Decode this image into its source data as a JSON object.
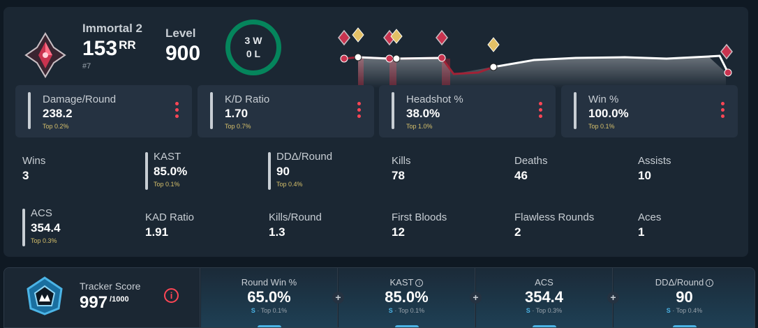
{
  "profile": {
    "rank_name": "Immortal 2",
    "rr_value": "153",
    "rr_unit": "RR",
    "leaderboard_place": "#7",
    "level_label": "Level",
    "level_value": "900",
    "wins_text": "3 W",
    "losses_text": "0 L"
  },
  "rr_history": {
    "points": [
      52,
      48,
      46,
      46,
      48,
      66,
      64,
      66,
      76,
      83
    ]
  },
  "stat_cards": [
    {
      "label": "Damage/Round",
      "value": "238.2",
      "top": "Top 0.2%"
    },
    {
      "label": "K/D Ratio",
      "value": "1.70",
      "top": "Top 0.7%"
    },
    {
      "label": "Headshot %",
      "value": "38.0%",
      "top": "Top 1.0%"
    },
    {
      "label": "Win %",
      "value": "100.0%",
      "top": "Top 0.1%"
    }
  ],
  "stats": {
    "wins": {
      "label": "Wins",
      "value": "3"
    },
    "kast": {
      "label": "KAST",
      "value": "85.0%",
      "top": "Top 0.1%"
    },
    "dda": {
      "label": "DDΔ/Round",
      "value": "90",
      "top": "Top 0.4%"
    },
    "kills": {
      "label": "Kills",
      "value": "78"
    },
    "deaths": {
      "label": "Deaths",
      "value": "46"
    },
    "assists": {
      "label": "Assists",
      "value": "10"
    },
    "acs": {
      "label": "ACS",
      "value": "354.4",
      "top": "Top 0.3%"
    },
    "kad": {
      "label": "KAD Ratio",
      "value": "1.91"
    },
    "kpr": {
      "label": "Kills/Round",
      "value": "1.3"
    },
    "first_bloods": {
      "label": "First Bloods",
      "value": "12"
    },
    "flawless": {
      "label": "Flawless Rounds",
      "value": "2"
    },
    "aces": {
      "label": "Aces",
      "value": "1"
    }
  },
  "tracker": {
    "label": "Tracker Score",
    "value": "997",
    "max": "/1000",
    "info_icon": "i",
    "plus_icon": "+",
    "cells": [
      {
        "label": "Round Win %",
        "value": "65.0%",
        "grade": "S",
        "top": "· Top 0.1%"
      },
      {
        "label": "KAST",
        "value": "85.0%",
        "grade": "S",
        "top": "· Top 0.1%"
      },
      {
        "label": "ACS",
        "value": "354.4",
        "grade": "S",
        "top": "· Top 0.3%"
      },
      {
        "label": "DDΔ/Round",
        "value": "90",
        "grade": "S",
        "top": "· Top 0.4%"
      }
    ]
  },
  "colors": {
    "accent_red": "#ff4655",
    "win_green": "#05855c",
    "top_gold": "#d6c06b",
    "grade_blue": "#4bb4e6"
  },
  "icons": [
    "immortal-rank-icon",
    "gold-rank-icon",
    "tracker-score-icon",
    "info-icon",
    "plus-icon",
    "more-options-icon"
  ]
}
